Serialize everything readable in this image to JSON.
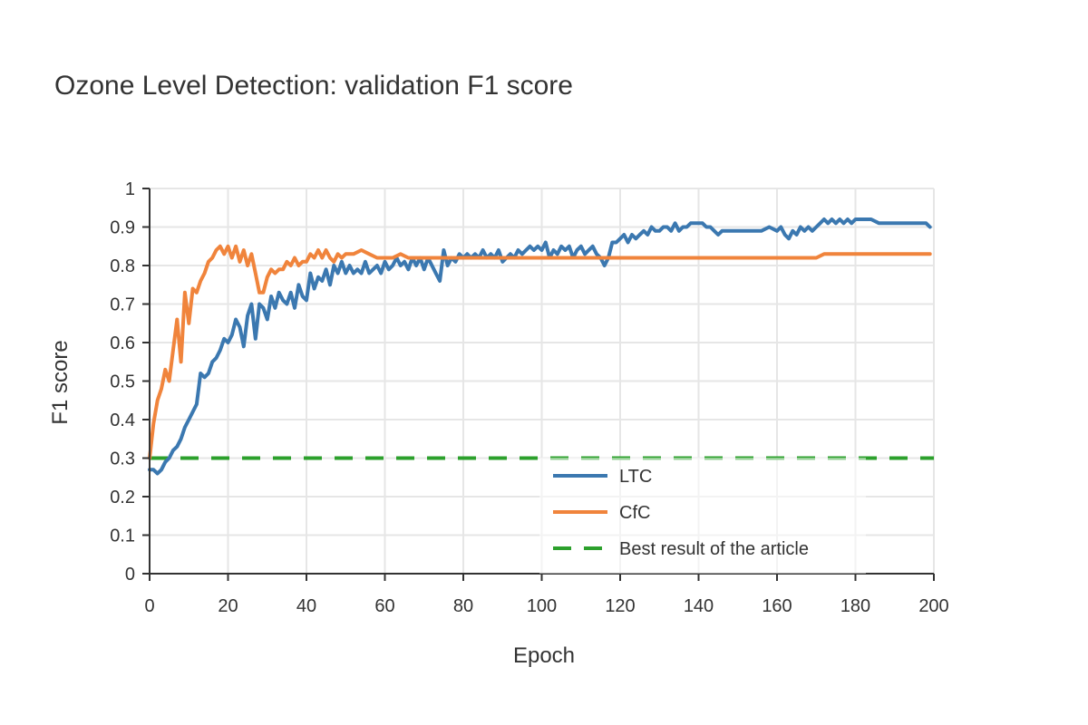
{
  "chart_data": {
    "type": "line",
    "title": "Ozone Level Detection: validation F1 score",
    "xlabel": "Epoch",
    "ylabel": "F1 score",
    "xlim": [
      0,
      200
    ],
    "ylim": [
      0,
      1
    ],
    "x_ticks": [
      "0",
      "20",
      "40",
      "60",
      "80",
      "100",
      "120",
      "140",
      "160",
      "180",
      "200"
    ],
    "y_ticks": [
      "0",
      "0.1",
      "0.2",
      "0.3",
      "0.4",
      "0.5",
      "0.6",
      "0.7",
      "0.8",
      "0.9",
      "1"
    ],
    "grid": true,
    "legend_position": "bottom-right",
    "series": [
      {
        "name": "LTC",
        "color": "#3b78b0",
        "style": "solid",
        "points": [
          [
            0,
            0.27
          ],
          [
            1,
            0.27
          ],
          [
            2,
            0.26
          ],
          [
            3,
            0.27
          ],
          [
            4,
            0.29
          ],
          [
            5,
            0.3
          ],
          [
            6,
            0.32
          ],
          [
            7,
            0.33
          ],
          [
            8,
            0.35
          ],
          [
            9,
            0.38
          ],
          [
            10,
            0.4
          ],
          [
            11,
            0.42
          ],
          [
            12,
            0.44
          ],
          [
            13,
            0.52
          ],
          [
            14,
            0.51
          ],
          [
            15,
            0.52
          ],
          [
            16,
            0.55
          ],
          [
            17,
            0.56
          ],
          [
            18,
            0.58
          ],
          [
            19,
            0.61
          ],
          [
            20,
            0.6
          ],
          [
            21,
            0.62
          ],
          [
            22,
            0.66
          ],
          [
            23,
            0.64
          ],
          [
            24,
            0.59
          ],
          [
            25,
            0.67
          ],
          [
            26,
            0.7
          ],
          [
            27,
            0.61
          ],
          [
            28,
            0.7
          ],
          [
            29,
            0.69
          ],
          [
            30,
            0.66
          ],
          [
            31,
            0.72
          ],
          [
            32,
            0.69
          ],
          [
            33,
            0.73
          ],
          [
            34,
            0.71
          ],
          [
            35,
            0.7
          ],
          [
            36,
            0.73
          ],
          [
            37,
            0.69
          ],
          [
            38,
            0.75
          ],
          [
            39,
            0.72
          ],
          [
            40,
            0.71
          ],
          [
            41,
            0.78
          ],
          [
            42,
            0.74
          ],
          [
            43,
            0.77
          ],
          [
            44,
            0.76
          ],
          [
            45,
            0.79
          ],
          [
            46,
            0.75
          ],
          [
            47,
            0.8
          ],
          [
            48,
            0.78
          ],
          [
            49,
            0.81
          ],
          [
            50,
            0.78
          ],
          [
            51,
            0.8
          ],
          [
            52,
            0.78
          ],
          [
            53,
            0.79
          ],
          [
            54,
            0.78
          ],
          [
            55,
            0.81
          ],
          [
            56,
            0.78
          ],
          [
            57,
            0.79
          ],
          [
            58,
            0.8
          ],
          [
            59,
            0.78
          ],
          [
            60,
            0.81
          ],
          [
            61,
            0.79
          ],
          [
            62,
            0.8
          ],
          [
            63,
            0.82
          ],
          [
            64,
            0.8
          ],
          [
            65,
            0.81
          ],
          [
            66,
            0.79
          ],
          [
            67,
            0.82
          ],
          [
            68,
            0.8
          ],
          [
            69,
            0.82
          ],
          [
            70,
            0.79
          ],
          [
            71,
            0.82
          ],
          [
            72,
            0.8
          ],
          [
            73,
            0.78
          ],
          [
            74,
            0.76
          ],
          [
            75,
            0.84
          ],
          [
            76,
            0.8
          ],
          [
            77,
            0.82
          ],
          [
            78,
            0.81
          ],
          [
            79,
            0.83
          ],
          [
            80,
            0.82
          ],
          [
            81,
            0.83
          ],
          [
            82,
            0.82
          ],
          [
            83,
            0.83
          ],
          [
            84,
            0.82
          ],
          [
            85,
            0.84
          ],
          [
            86,
            0.82
          ],
          [
            87,
            0.83
          ],
          [
            88,
            0.82
          ],
          [
            89,
            0.84
          ],
          [
            90,
            0.81
          ],
          [
            91,
            0.82
          ],
          [
            92,
            0.83
          ],
          [
            93,
            0.82
          ],
          [
            94,
            0.84
          ],
          [
            95,
            0.83
          ],
          [
            96,
            0.84
          ],
          [
            97,
            0.85
          ],
          [
            98,
            0.84
          ],
          [
            99,
            0.85
          ],
          [
            100,
            0.84
          ],
          [
            101,
            0.86
          ],
          [
            102,
            0.82
          ],
          [
            103,
            0.84
          ],
          [
            104,
            0.83
          ],
          [
            105,
            0.85
          ],
          [
            106,
            0.84
          ],
          [
            107,
            0.85
          ],
          [
            108,
            0.82
          ],
          [
            109,
            0.84
          ],
          [
            110,
            0.85
          ],
          [
            111,
            0.83
          ],
          [
            112,
            0.84
          ],
          [
            113,
            0.85
          ],
          [
            114,
            0.83
          ],
          [
            115,
            0.82
          ],
          [
            116,
            0.8
          ],
          [
            117,
            0.82
          ],
          [
            118,
            0.86
          ],
          [
            119,
            0.86
          ],
          [
            120,
            0.87
          ],
          [
            121,
            0.88
          ],
          [
            122,
            0.86
          ],
          [
            123,
            0.88
          ],
          [
            124,
            0.87
          ],
          [
            125,
            0.88
          ],
          [
            126,
            0.89
          ],
          [
            127,
            0.88
          ],
          [
            128,
            0.9
          ],
          [
            129,
            0.89
          ],
          [
            130,
            0.89
          ],
          [
            131,
            0.9
          ],
          [
            132,
            0.9
          ],
          [
            133,
            0.89
          ],
          [
            134,
            0.91
          ],
          [
            135,
            0.89
          ],
          [
            136,
            0.9
          ],
          [
            137,
            0.9
          ],
          [
            138,
            0.91
          ],
          [
            139,
            0.91
          ],
          [
            140,
            0.91
          ],
          [
            141,
            0.91
          ],
          [
            142,
            0.9
          ],
          [
            143,
            0.9
          ],
          [
            144,
            0.89
          ],
          [
            145,
            0.88
          ],
          [
            146,
            0.89
          ],
          [
            147,
            0.89
          ],
          [
            148,
            0.89
          ],
          [
            149,
            0.89
          ],
          [
            150,
            0.89
          ],
          [
            152,
            0.89
          ],
          [
            154,
            0.89
          ],
          [
            156,
            0.89
          ],
          [
            158,
            0.9
          ],
          [
            160,
            0.89
          ],
          [
            161,
            0.9
          ],
          [
            162,
            0.88
          ],
          [
            163,
            0.87
          ],
          [
            164,
            0.89
          ],
          [
            165,
            0.88
          ],
          [
            166,
            0.9
          ],
          [
            167,
            0.89
          ],
          [
            168,
            0.9
          ],
          [
            169,
            0.89
          ],
          [
            170,
            0.9
          ],
          [
            171,
            0.91
          ],
          [
            172,
            0.92
          ],
          [
            173,
            0.91
          ],
          [
            174,
            0.92
          ],
          [
            175,
            0.91
          ],
          [
            176,
            0.92
          ],
          [
            177,
            0.91
          ],
          [
            178,
            0.92
          ],
          [
            179,
            0.91
          ],
          [
            180,
            0.92
          ],
          [
            182,
            0.92
          ],
          [
            184,
            0.92
          ],
          [
            186,
            0.91
          ],
          [
            188,
            0.91
          ],
          [
            190,
            0.91
          ],
          [
            192,
            0.91
          ],
          [
            194,
            0.91
          ],
          [
            196,
            0.91
          ],
          [
            198,
            0.91
          ],
          [
            199,
            0.9
          ]
        ]
      },
      {
        "name": "CfC",
        "color": "#f0843c",
        "style": "solid",
        "points": [
          [
            0,
            0.3
          ],
          [
            1,
            0.39
          ],
          [
            2,
            0.45
          ],
          [
            3,
            0.48
          ],
          [
            4,
            0.53
          ],
          [
            5,
            0.5
          ],
          [
            6,
            0.58
          ],
          [
            7,
            0.66
          ],
          [
            8,
            0.55
          ],
          [
            9,
            0.73
          ],
          [
            10,
            0.65
          ],
          [
            11,
            0.74
          ],
          [
            12,
            0.73
          ],
          [
            13,
            0.76
          ],
          [
            14,
            0.78
          ],
          [
            15,
            0.81
          ],
          [
            16,
            0.82
          ],
          [
            17,
            0.84
          ],
          [
            18,
            0.85
          ],
          [
            19,
            0.83
          ],
          [
            20,
            0.85
          ],
          [
            21,
            0.82
          ],
          [
            22,
            0.85
          ],
          [
            23,
            0.81
          ],
          [
            24,
            0.84
          ],
          [
            25,
            0.8
          ],
          [
            26,
            0.83
          ],
          [
            27,
            0.78
          ],
          [
            28,
            0.73
          ],
          [
            29,
            0.73
          ],
          [
            30,
            0.77
          ],
          [
            31,
            0.79
          ],
          [
            32,
            0.78
          ],
          [
            33,
            0.79
          ],
          [
            34,
            0.79
          ],
          [
            35,
            0.81
          ],
          [
            36,
            0.8
          ],
          [
            37,
            0.82
          ],
          [
            38,
            0.8
          ],
          [
            39,
            0.81
          ],
          [
            40,
            0.81
          ],
          [
            41,
            0.83
          ],
          [
            42,
            0.82
          ],
          [
            43,
            0.84
          ],
          [
            44,
            0.82
          ],
          [
            45,
            0.84
          ],
          [
            46,
            0.82
          ],
          [
            47,
            0.81
          ],
          [
            48,
            0.83
          ],
          [
            49,
            0.82
          ],
          [
            50,
            0.83
          ],
          [
            52,
            0.83
          ],
          [
            54,
            0.84
          ],
          [
            56,
            0.83
          ],
          [
            58,
            0.82
          ],
          [
            60,
            0.82
          ],
          [
            62,
            0.82
          ],
          [
            64,
            0.83
          ],
          [
            66,
            0.82
          ],
          [
            68,
            0.82
          ],
          [
            70,
            0.82
          ],
          [
            75,
            0.82
          ],
          [
            80,
            0.82
          ],
          [
            90,
            0.82
          ],
          [
            100,
            0.82
          ],
          [
            110,
            0.82
          ],
          [
            120,
            0.82
          ],
          [
            130,
            0.82
          ],
          [
            140,
            0.82
          ],
          [
            150,
            0.82
          ],
          [
            160,
            0.82
          ],
          [
            168,
            0.82
          ],
          [
            170,
            0.82
          ],
          [
            172,
            0.83
          ],
          [
            180,
            0.83
          ],
          [
            190,
            0.83
          ],
          [
            199,
            0.83
          ]
        ]
      },
      {
        "name": "Best result of the article",
        "color": "#2ca02c",
        "style": "dashed",
        "points": [
          [
            0,
            0.3
          ],
          [
            200,
            0.3
          ]
        ]
      }
    ]
  }
}
